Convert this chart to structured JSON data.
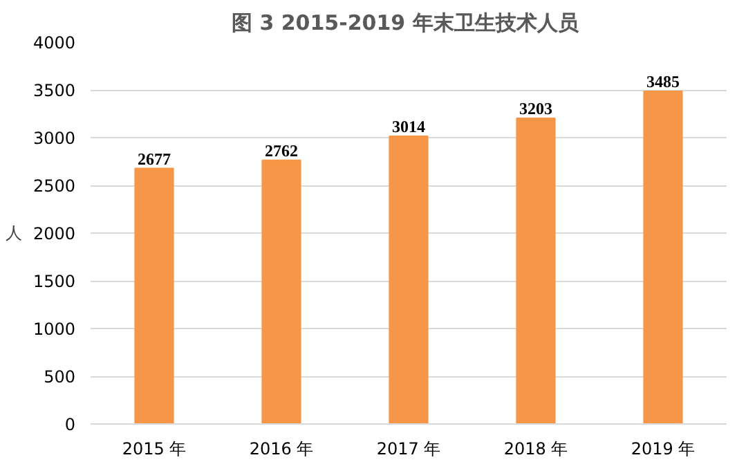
{
  "chart_data": {
    "type": "bar",
    "title": "图 3  2015-2019 年末卫生技术人员",
    "ylabel": "人",
    "categories": [
      "2015 年",
      "2016 年",
      "2017 年",
      "2018 年",
      "2019 年"
    ],
    "values": [
      2677,
      2762,
      3014,
      3203,
      3485
    ],
    "color": "#f79646",
    "ylim": [
      0,
      4000
    ],
    "yticks": [
      0,
      500,
      1000,
      1500,
      2000,
      2500,
      3000,
      3500,
      4000
    ],
    "grid": "y",
    "data_labels": true
  }
}
